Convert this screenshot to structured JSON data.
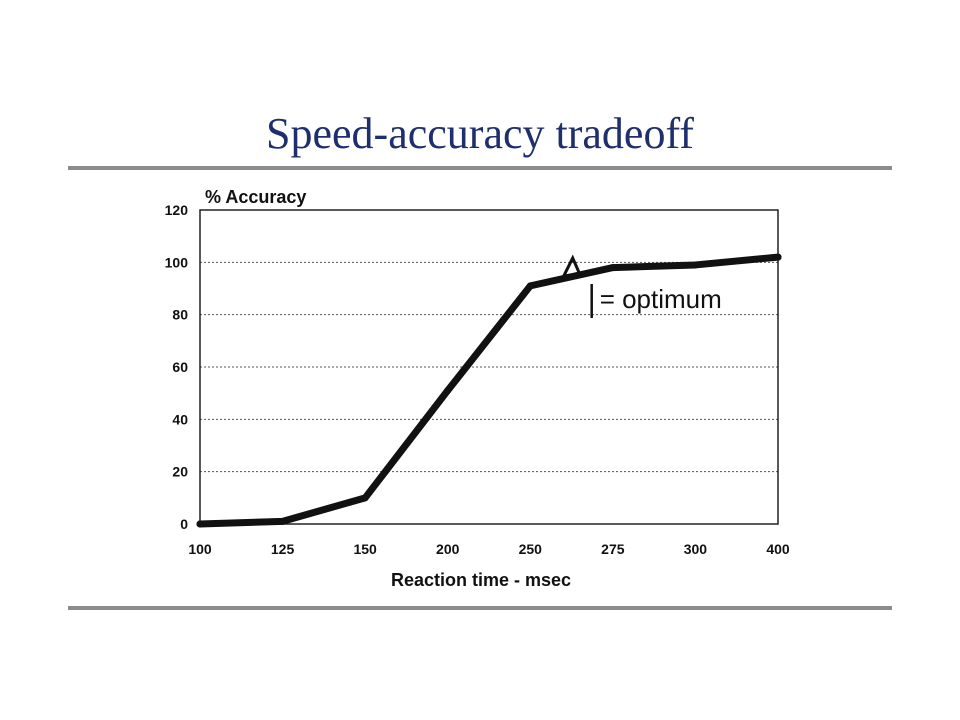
{
  "slide": {
    "title": "Speed-accuracy tradeoff"
  },
  "chart_data": {
    "type": "line",
    "title": "",
    "xlabel": "Reaction time - msec",
    "ylabel": "% Accuracy",
    "x_ticks": [
      "100",
      "125",
      "150",
      "200",
      "250",
      "275",
      "300",
      "400"
    ],
    "y_ticks": [
      0,
      20,
      40,
      60,
      80,
      100,
      120
    ],
    "ylim": [
      0,
      120
    ],
    "grid": true,
    "series": [
      {
        "x": [
          "100",
          "125",
          "150",
          "200",
          "250",
          "275",
          "300",
          "400"
        ],
        "values": [
          0,
          1,
          10,
          51,
          91,
          98,
          99,
          102
        ]
      }
    ],
    "annotation": {
      "text": "= optimum",
      "x": "265",
      "y": 94
    },
    "colors": {
      "line": "#111111",
      "grid": "#555555",
      "frame": "#222222"
    }
  }
}
